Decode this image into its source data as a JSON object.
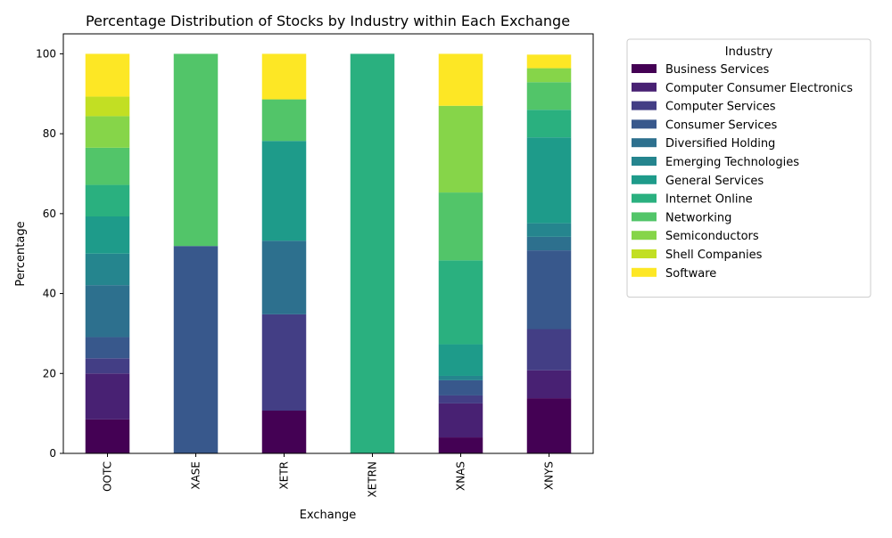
{
  "chart_data": {
    "type": "bar",
    "stacked": true,
    "title": "Percentage Distribution of Stocks by Industry within Each Exchange",
    "xlabel": "Exchange",
    "ylabel": "Percentage",
    "ylim": [
      0,
      105
    ],
    "yticks": [
      0,
      20,
      40,
      60,
      80,
      100
    ],
    "grid": false,
    "legend": {
      "title": "Industry",
      "placement": "outside-right"
    },
    "categories": [
      "OOTC",
      "XASE",
      "XETR",
      "XETRN",
      "XNAS",
      "XNYS"
    ],
    "series": [
      {
        "name": "Business Services",
        "color": "#440154",
        "values": [
          8.5,
          0,
          10.7,
          0,
          4.0,
          13.8
        ]
      },
      {
        "name": "Computer Consumer Electronics",
        "color": "#482173",
        "values": [
          11.5,
          0,
          0,
          0,
          8.5,
          7.0
        ]
      },
      {
        "name": "Computer Services",
        "color": "#433e85",
        "values": [
          3.8,
          0,
          24.1,
          0,
          2.0,
          10.3
        ]
      },
      {
        "name": "Consumer Services",
        "color": "#38588c",
        "values": [
          5.3,
          51.9,
          0,
          0,
          3.8,
          19.7
        ]
      },
      {
        "name": "Diversified Holding",
        "color": "#2d708e",
        "values": [
          13.0,
          0,
          18.4,
          0,
          0,
          3.4
        ]
      },
      {
        "name": "Emerging Technologies",
        "color": "#25858e",
        "values": [
          7.9,
          0,
          0,
          0,
          1.1,
          3.4
        ]
      },
      {
        "name": "General Services",
        "color": "#1e9b8a",
        "values": [
          9.3,
          0,
          25.0,
          0,
          7.9,
          21.5
        ]
      },
      {
        "name": "Internet Online",
        "color": "#2ab07f",
        "values": [
          7.9,
          0,
          0,
          100,
          21.0,
          6.9
        ]
      },
      {
        "name": "Networking",
        "color": "#52c569",
        "values": [
          9.3,
          48.1,
          10.4,
          0,
          17.0,
          6.9
        ]
      },
      {
        "name": "Semiconductors",
        "color": "#86d549",
        "values": [
          7.9,
          0,
          0,
          0,
          21.7,
          3.5
        ]
      },
      {
        "name": "Shell Companies",
        "color": "#c2df23",
        "values": [
          4.9,
          0,
          0,
          0,
          0,
          0
        ]
      },
      {
        "name": "Software",
        "color": "#fde725",
        "values": [
          10.7,
          0,
          11.4,
          0,
          13.0,
          3.4
        ]
      }
    ]
  }
}
